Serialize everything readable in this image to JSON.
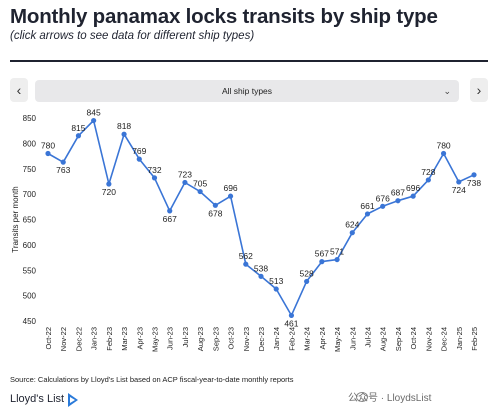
{
  "header": {
    "title": "Monthly panamax locks transits by ship type",
    "subtitle": "(click arrows to see data for different ship types)"
  },
  "controls": {
    "prev_label": "‹",
    "next_label": "›",
    "select_value": "All ship types",
    "select_chevron": "⌄"
  },
  "chart_data": {
    "type": "line",
    "title": "",
    "xlabel": "",
    "ylabel": "Transits per month",
    "ylim": [
      450,
      850
    ],
    "yticks": [
      450,
      500,
      550,
      600,
      650,
      700,
      750,
      800,
      850
    ],
    "grid": false,
    "line_color": "#3a75d6",
    "categories": [
      "Oct-22",
      "Nov-22",
      "Dec-22",
      "Jan-23",
      "Feb-23",
      "Mar-23",
      "Apr-23",
      "May-23",
      "Jun-23",
      "Jul-23",
      "Aug-23",
      "Sep-23",
      "Oct-23",
      "Nov-23",
      "Dec-23",
      "Jan-24",
      "Feb-24",
      "Mar-24",
      "Apr-24",
      "May-24",
      "Jun-24",
      "Jul-24",
      "Aug-24",
      "Sep-24",
      "Oct-24",
      "Nov-24",
      "Dec-24",
      "Jan-25",
      "Feb-25"
    ],
    "series": [
      {
        "values": [
          780,
          763,
          815,
          845,
          720,
          818,
          769,
          732,
          667,
          723,
          705,
          678,
          696,
          562,
          538,
          513,
          461,
          528,
          567,
          571,
          624,
          661,
          676,
          687,
          696,
          728,
          780,
          724,
          738
        ]
      }
    ]
  },
  "footer": {
    "source": "Source: Calculations by Lloyd's List based on ACP fiscal-year-to-date monthly reports",
    "logo_text": "Lloyd's List",
    "watermark": "公众号 · LloydsList"
  }
}
